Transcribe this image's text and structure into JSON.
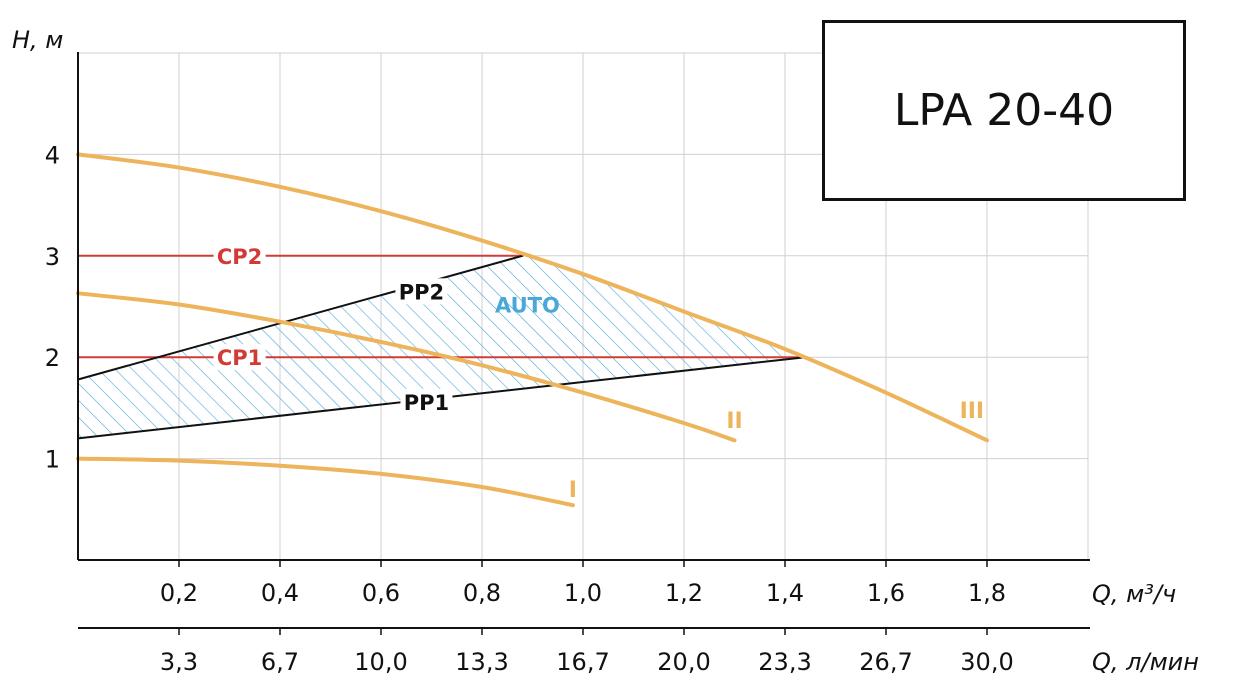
{
  "model": "LPA 20-40",
  "chart_data": {
    "type": "line",
    "ylabel": "H, м",
    "xlabel": "Q, м³/ч",
    "xlabel2": "Q, л/мин",
    "ylim": [
      0,
      5
    ],
    "xlim": [
      0,
      2.0
    ],
    "yticks": [
      {
        "v": 1,
        "label": "1"
      },
      {
        "v": 2,
        "label": "2"
      },
      {
        "v": 3,
        "label": "3"
      },
      {
        "v": 4,
        "label": "4"
      }
    ],
    "xticks": [
      {
        "v": 0.2,
        "label": "0,2"
      },
      {
        "v": 0.4,
        "label": "0,4"
      },
      {
        "v": 0.6,
        "label": "0,6"
      },
      {
        "v": 0.8,
        "label": "0,8"
      },
      {
        "v": 1.0,
        "label": "1,0"
      },
      {
        "v": 1.2,
        "label": "1,2"
      },
      {
        "v": 1.4,
        "label": "1,4"
      },
      {
        "v": 1.6,
        "label": "1,6"
      },
      {
        "v": 1.8,
        "label": "1,8"
      }
    ],
    "xticks2": [
      {
        "v": 0.2,
        "label": "3,3"
      },
      {
        "v": 0.4,
        "label": "6,7"
      },
      {
        "v": 0.6,
        "label": "10,0"
      },
      {
        "v": 0.8,
        "label": "13,3"
      },
      {
        "v": 1.0,
        "label": "16,7"
      },
      {
        "v": 1.2,
        "label": "20,0"
      },
      {
        "v": 1.4,
        "label": "23,3"
      },
      {
        "v": 1.6,
        "label": "26,7"
      },
      {
        "v": 1.8,
        "label": "30,0"
      }
    ],
    "grid": true,
    "colors": {
      "curve": "#EDB45B",
      "cp": "#D23A36",
      "pp": "#111111",
      "auto": "#4AA8D8",
      "grid": "#D0D0D0"
    },
    "series": [
      {
        "name": "I",
        "kind": "speed",
        "x": [
          0,
          0.2,
          0.4,
          0.6,
          0.8,
          0.98
        ],
        "y": [
          1.0,
          0.98,
          0.93,
          0.85,
          0.72,
          0.54
        ]
      },
      {
        "name": "II",
        "kind": "speed",
        "x": [
          0,
          0.2,
          0.4,
          0.6,
          0.8,
          1.0,
          1.2,
          1.3
        ],
        "y": [
          2.63,
          2.52,
          2.35,
          2.15,
          1.92,
          1.65,
          1.35,
          1.18
        ]
      },
      {
        "name": "III",
        "kind": "speed",
        "x": [
          0,
          0.2,
          0.4,
          0.6,
          0.8,
          1.0,
          1.2,
          1.4,
          1.6,
          1.8
        ],
        "y": [
          4.0,
          3.87,
          3.68,
          3.44,
          3.15,
          2.82,
          2.45,
          2.08,
          1.65,
          1.18
        ]
      },
      {
        "name": "CP2",
        "kind": "cp",
        "x": [
          0,
          0.88
        ],
        "y": [
          3.0,
          3.0
        ]
      },
      {
        "name": "CP1",
        "kind": "cp",
        "x": [
          0,
          1.44
        ],
        "y": [
          2.0,
          2.0
        ]
      },
      {
        "name": "PP2",
        "kind": "pp",
        "x": [
          0,
          0.88
        ],
        "y": [
          1.78,
          3.0
        ]
      },
      {
        "name": "PP1",
        "kind": "pp",
        "x": [
          0,
          1.44
        ],
        "y": [
          1.2,
          2.0
        ]
      }
    ],
    "annotations": [
      {
        "text": "CP2",
        "series": "CP2",
        "x": 0.32,
        "y": 3.0
      },
      {
        "text": "CP1",
        "series": "CP1",
        "x": 0.32,
        "y": 2.0
      },
      {
        "text": "PP2",
        "series": "PP2",
        "x": 0.68,
        "y": 2.65
      },
      {
        "text": "PP1",
        "series": "PP1",
        "x": 0.69,
        "y": 1.56
      },
      {
        "text": "AUTO",
        "series": "AUTO",
        "x": 0.89,
        "y": 2.52
      },
      {
        "text": "I",
        "series": "I",
        "x": 0.98,
        "y": 0.7
      },
      {
        "text": "II",
        "series": "II",
        "x": 1.3,
        "y": 1.38
      },
      {
        "text": "III",
        "series": "III",
        "x": 1.77,
        "y": 1.48
      }
    ]
  }
}
